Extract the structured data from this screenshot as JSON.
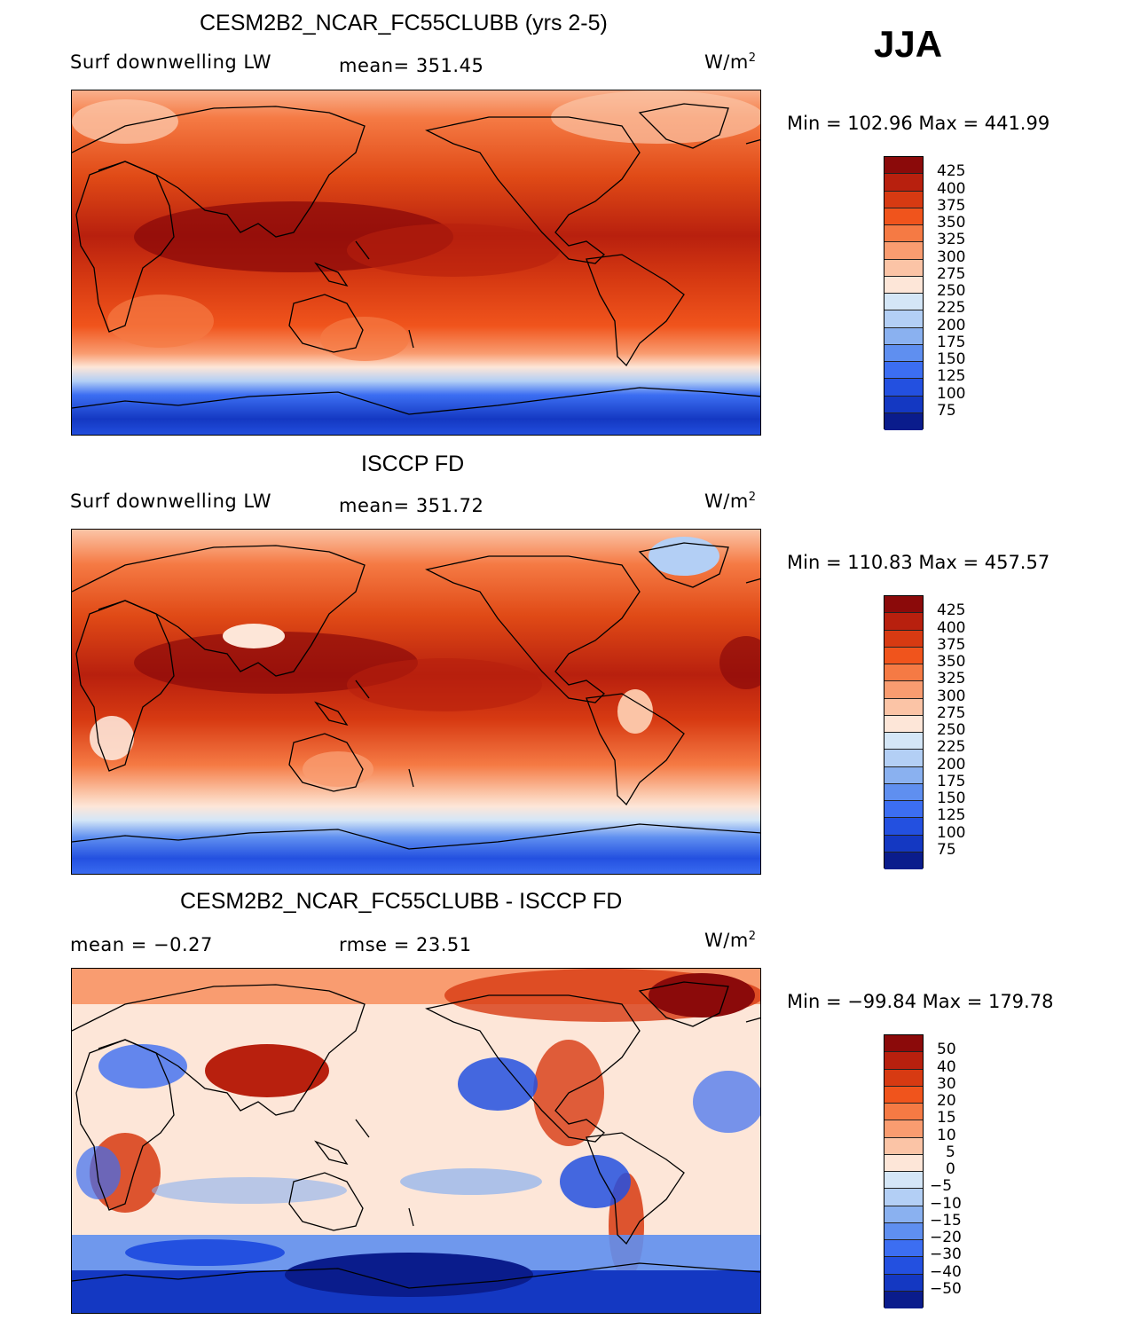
{
  "season": "JJA",
  "units_base": "W/m",
  "units_exp": "2",
  "panels": [
    {
      "title": "CESM2B2_NCAR_FC55CLUBB (yrs 2-5)",
      "left_label": "Surf downwelling LW",
      "center_label": "mean= 351.45",
      "minmax": "Min = 102.96 Max = 441.99"
    },
    {
      "title": "ISCCP FD",
      "left_label": "Surf downwelling LW",
      "center_label": "mean= 351.72",
      "minmax": "Min = 110.83 Max = 457.57"
    },
    {
      "title": "CESM2B2_NCAR_FC55CLUBB - ISCCP FD",
      "left_label": "mean =  −0.27",
      "center_label": "rmse =   23.51",
      "minmax": "Min = −99.84 Max = 179.78"
    }
  ],
  "colorbar_abs": {
    "labels": [
      "425",
      "400",
      "375",
      "350",
      "325",
      "300",
      "275",
      "250",
      "225",
      "200",
      "175",
      "150",
      "125",
      "100",
      "75"
    ],
    "colors": [
      "#8b0a0a",
      "#b8200e",
      "#d73a12",
      "#f0541c",
      "#f57a44",
      "#f99c70",
      "#fbc4a6",
      "#fde6d8",
      "#d4e6f7",
      "#b3cff5",
      "#8ab1f0",
      "#5f8ff0",
      "#3c6ef2",
      "#2350e0",
      "#1438c2",
      "#0a1c8c"
    ]
  },
  "colorbar_diff": {
    "labels": [
      "50",
      "40",
      "30",
      "20",
      "15",
      "10",
      "5",
      "0",
      "−5",
      "−10",
      "−15",
      "−20",
      "−30",
      "−40",
      "−50"
    ],
    "colors": [
      "#8b0a0a",
      "#b8200e",
      "#d73a12",
      "#f0541c",
      "#f57a44",
      "#f99c70",
      "#fbc4a6",
      "#fde6d8",
      "#d4e6f7",
      "#b3cff5",
      "#8ab1f0",
      "#5f8ff0",
      "#3c6ef2",
      "#2350e0",
      "#1438c2",
      "#0a1c8c"
    ]
  }
}
